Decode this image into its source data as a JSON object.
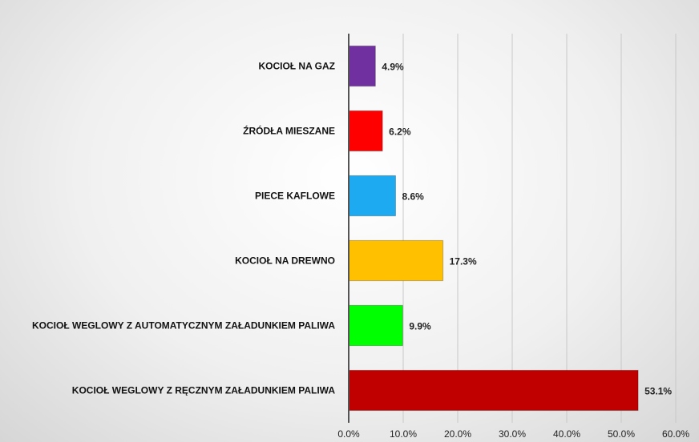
{
  "chart_data": {
    "type": "bar",
    "orientation": "horizontal",
    "categories": [
      "KOCIOŁ NA GAZ",
      "ŹRÓDŁA MIESZANE",
      "PIECE KAFLOWE",
      "KOCIOŁ NA DREWNO",
      "KOCIOŁ WEGLOWY Z AUTOMATYCZNYM ZAŁADUNKIEM PALIWA",
      "KOCIOŁ WEGLOWY Z RĘCZNYM ZAŁADUNKIEM PALIWA"
    ],
    "values": [
      4.9,
      6.2,
      8.6,
      17.3,
      9.9,
      53.1
    ],
    "value_labels": [
      "4.9%",
      "6.2%",
      "8.6%",
      "17.3%",
      "9.9%",
      "53.1%"
    ],
    "colors": [
      "#7030a0",
      "#ff0000",
      "#1eaaf1",
      "#ffc000",
      "#00ff00",
      "#c00000"
    ],
    "xlim": [
      0,
      60
    ],
    "xticks": [
      {
        "value": 0,
        "label": "0.0%"
      },
      {
        "value": 10,
        "label": "10.0%"
      },
      {
        "value": 20,
        "label": "20.0%"
      },
      {
        "value": 30,
        "label": "30.0%"
      },
      {
        "value": 40,
        "label": "40.0%"
      },
      {
        "value": 50,
        "label": "50.0%"
      },
      {
        "value": 60,
        "label": "60.0%"
      }
    ],
    "grid": true
  }
}
